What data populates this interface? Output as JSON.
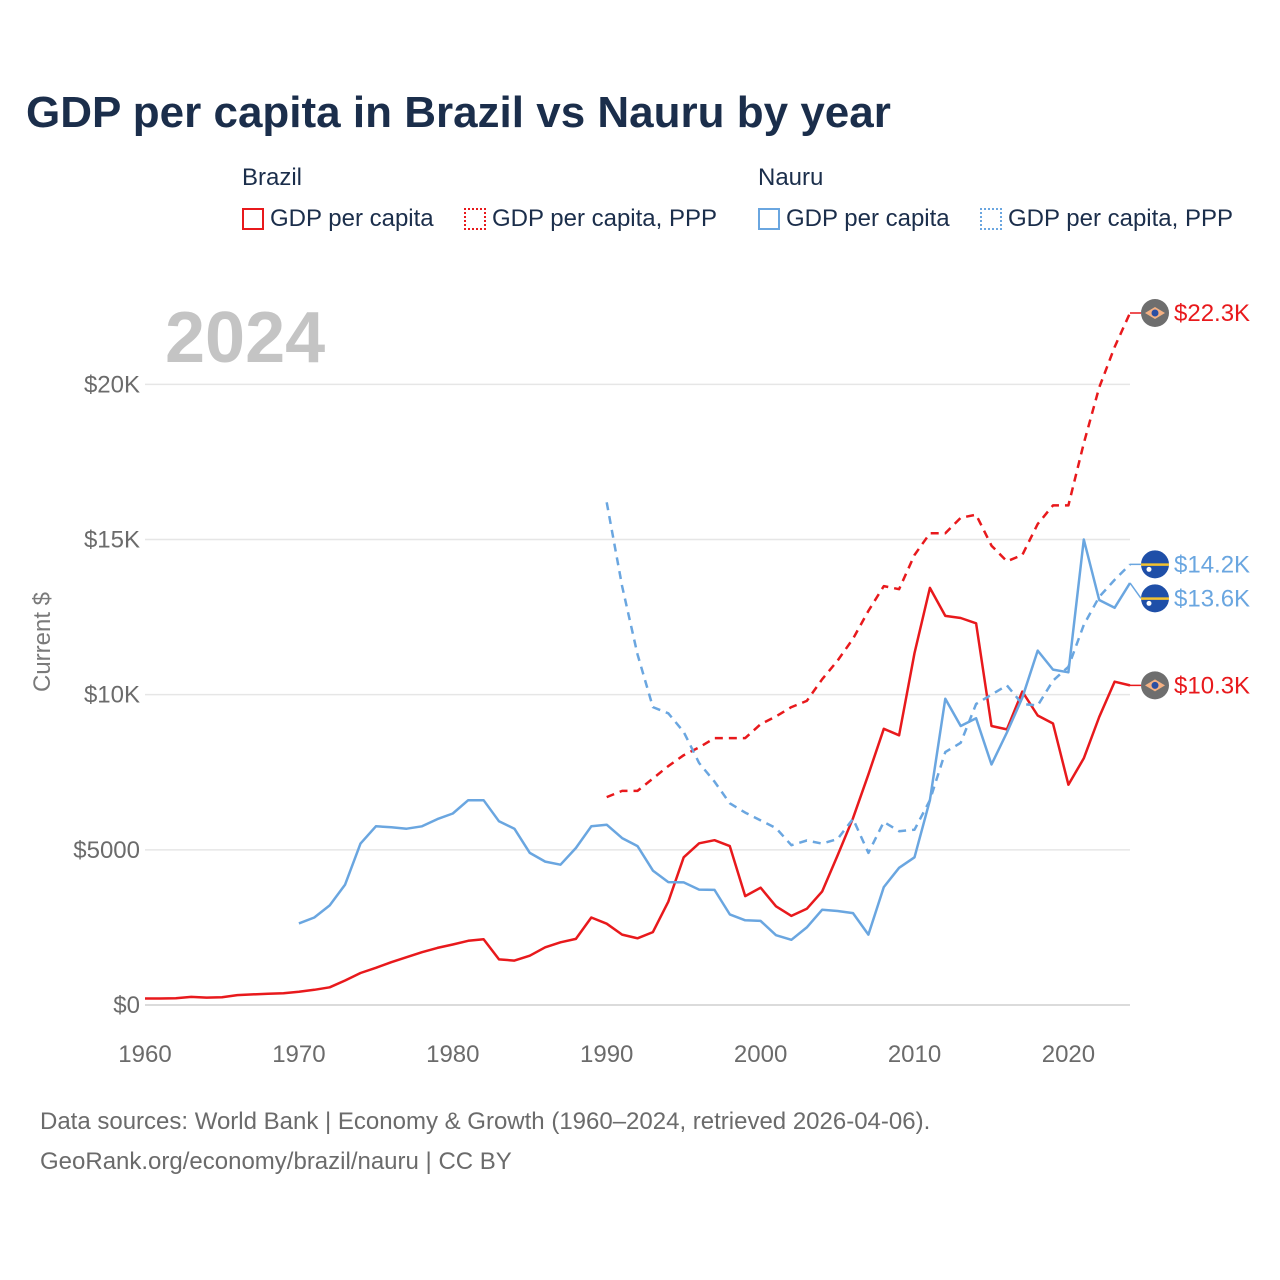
{
  "header": {
    "title": "GDP per capita in Brazil vs Nauru by year"
  },
  "legend": {
    "groups": [
      {
        "name": "Brazil",
        "items": [
          {
            "label": "GDP per capita",
            "style": "solid",
            "color": "#e8191c"
          },
          {
            "label": "GDP per capita, PPP",
            "style": "dotted",
            "color": "#e8191c"
          }
        ]
      },
      {
        "name": "Nauru",
        "items": [
          {
            "label": "GDP per capita",
            "style": "solid",
            "color": "#6aa6e0"
          },
          {
            "label": "GDP per capita, PPP",
            "style": "dotted",
            "color": "#6aa6e0"
          }
        ]
      }
    ]
  },
  "footer": {
    "source_line": "Data sources: World Bank | Economy & Growth (1960–2024, retrieved 2026-04-06).",
    "credit_line": "GeoRank.org/economy/brazil/nauru | CC BY"
  },
  "chart_data": {
    "type": "line",
    "title": "GDP per capita in Brazil vs Nauru by year",
    "year_label": "2024",
    "ylabel": "Current $",
    "xlabel": "",
    "xlim": [
      1960,
      2024
    ],
    "ylim": [
      0,
      22300
    ],
    "x_ticks": [
      1960,
      1970,
      1980,
      1990,
      2000,
      2010,
      2020
    ],
    "x_tick_labels": [
      "1960",
      "1970",
      "1980",
      "1990",
      "2000",
      "2010",
      "2020"
    ],
    "y_ticks": [
      0,
      5000,
      10000,
      15000,
      20000
    ],
    "y_tick_labels": [
      "$0",
      "$5000",
      "$10K",
      "$15K",
      "$20K"
    ],
    "series": [
      {
        "name": "Brazil GDP per capita",
        "country": "Brazil",
        "color": "#e8191c",
        "dash": "solid",
        "end_label": "$10.3K",
        "flag": "brazil",
        "x": [
          1960,
          1961,
          1962,
          1963,
          1964,
          1965,
          1966,
          1967,
          1968,
          1969,
          1970,
          1971,
          1972,
          1973,
          1974,
          1975,
          1976,
          1977,
          1978,
          1979,
          1980,
          1981,
          1982,
          1983,
          1984,
          1985,
          1986,
          1987,
          1988,
          1989,
          1990,
          1991,
          1992,
          1993,
          1994,
          1995,
          1996,
          1997,
          1998,
          1999,
          2000,
          2001,
          2002,
          2003,
          2004,
          2005,
          2006,
          2007,
          2008,
          2009,
          2010,
          2011,
          2012,
          2013,
          2014,
          2015,
          2016,
          2017,
          2018,
          2019,
          2020,
          2021,
          2022,
          2023,
          2024
        ],
        "values": [
          210,
          210,
          220,
          260,
          240,
          250,
          320,
          340,
          360,
          380,
          430,
          490,
          570,
          790,
          1030,
          1200,
          1380,
          1540,
          1700,
          1840,
          1950,
          2070,
          2120,
          1470,
          1430,
          1590,
          1860,
          2020,
          2130,
          2820,
          2620,
          2270,
          2150,
          2350,
          3330,
          4760,
          5210,
          5310,
          5120,
          3510,
          3780,
          3180,
          2870,
          3100,
          3660,
          4820,
          6020,
          7430,
          8900,
          8690,
          11340,
          13440,
          12540,
          12470,
          12300,
          8990,
          8880,
          10100,
          9330,
          9070,
          7100,
          7950,
          9280,
          10420,
          10300
        ]
      },
      {
        "name": "Brazil GDP per capita, PPP",
        "country": "Brazil",
        "color": "#e8191c",
        "dash": "dashed",
        "end_label": "$22.3K",
        "flag": "brazil",
        "x": [
          1990,
          1991,
          1992,
          1993,
          1994,
          1995,
          1996,
          1997,
          1998,
          1999,
          2000,
          2001,
          2002,
          2003,
          2004,
          2005,
          2006,
          2007,
          2008,
          2009,
          2010,
          2011,
          2012,
          2013,
          2014,
          2015,
          2016,
          2017,
          2018,
          2019,
          2020,
          2021,
          2022,
          2023,
          2024
        ],
        "values": [
          6700,
          6900,
          6900,
          7300,
          7700,
          8050,
          8300,
          8600,
          8600,
          8600,
          9050,
          9300,
          9600,
          9800,
          10500,
          11100,
          11800,
          12700,
          13500,
          13400,
          14500,
          15200,
          15200,
          15700,
          15800,
          14800,
          14300,
          14500,
          15500,
          16100,
          16100,
          18100,
          19900,
          21200,
          22300
        ]
      },
      {
        "name": "Nauru GDP per capita",
        "country": "Nauru",
        "color": "#6aa6e0",
        "dash": "solid",
        "end_label": "$13.6K",
        "flag": "nauru",
        "x": [
          1970,
          1971,
          1972,
          1973,
          1974,
          1975,
          1976,
          1977,
          1978,
          1979,
          1980,
          1981,
          1982,
          1983,
          1984,
          1985,
          1986,
          1987,
          1988,
          1989,
          1990,
          1991,
          1992,
          1993,
          1994,
          1995,
          1996,
          1997,
          1998,
          1999,
          2000,
          2001,
          2002,
          2003,
          2004,
          2005,
          2006,
          2007,
          2008,
          2009,
          2010,
          2011,
          2012,
          2013,
          2014,
          2015,
          2016,
          2017,
          2018,
          2019,
          2020,
          2021,
          2022,
          2023,
          2024
        ],
        "values": [
          2630,
          2820,
          3210,
          3880,
          5200,
          5760,
          5730,
          5680,
          5760,
          5990,
          6170,
          6600,
          6600,
          5920,
          5680,
          4900,
          4620,
          4520,
          5060,
          5760,
          5810,
          5380,
          5120,
          4330,
          3960,
          3950,
          3720,
          3710,
          2920,
          2730,
          2710,
          2250,
          2100,
          2500,
          3070,
          3030,
          2960,
          2270,
          3800,
          4420,
          4760,
          6600,
          9870,
          8990,
          9240,
          7750,
          8780,
          9900,
          11420,
          10810,
          10720,
          15000,
          13050,
          12800,
          13600
        ]
      },
      {
        "name": "Nauru GDP per capita, PPP",
        "country": "Nauru",
        "color": "#6aa6e0",
        "dash": "dashed",
        "end_label": "$14.2K",
        "flag": "nauru",
        "x": [
          1990,
          1991,
          1992,
          1993,
          1994,
          1995,
          1996,
          1997,
          1998,
          1999,
          2000,
          2001,
          2002,
          2003,
          2004,
          2005,
          2006,
          2007,
          2008,
          2009,
          2010,
          2011,
          2012,
          2013,
          2014,
          2015,
          2016,
          2017,
          2018,
          2019,
          2020,
          2021,
          2022,
          2023,
          2024
        ],
        "values": [
          16200,
          13500,
          11300,
          9600,
          9400,
          8800,
          7800,
          7200,
          6500,
          6200,
          5950,
          5700,
          5150,
          5300,
          5200,
          5350,
          6000,
          4900,
          5900,
          5600,
          5650,
          6600,
          8150,
          8450,
          9700,
          10000,
          10300,
          9700,
          9650,
          10450,
          10900,
          12250,
          13150,
          13700,
          14200
        ]
      }
    ]
  }
}
